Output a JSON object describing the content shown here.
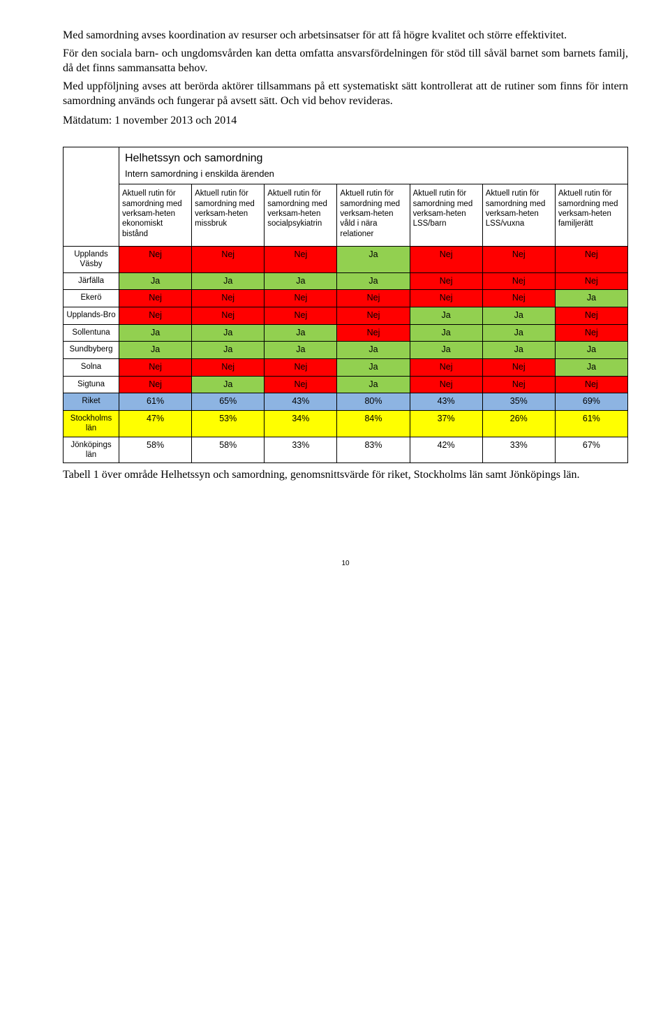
{
  "paragraphs": {
    "p1": "Med samordning avses koordination av resurser och arbetsinsatser för att få högre kvalitet och större effektivitet.",
    "p2": "För den sociala barn- och ungdomsvården kan detta omfatta ansvarsfördelningen för stöd till såväl barnet som barnets familj, då det finns sammansatta behov.",
    "p3": "Med uppföljning avses att berörda aktörer tillsammans på ett systematiskt sätt kontrollerat att de rutiner som finns för intern samordning används och fungerar på avsett sätt. Och vid behov revideras.",
    "matdatum": "Mätdatum: 1 november 2013 och 2014"
  },
  "table": {
    "title": "Helhetssyn och samordning",
    "subtitle": "Intern samordning i enskilda ärenden",
    "columns": [
      "Aktuell rutin för samordning med verksam-heten ekonomiskt bistånd",
      "Aktuell rutin för samordning med verksam-heten missbruk",
      "Aktuell rutin för samordning med verksam-heten socialpsykiatrin",
      "Aktuell rutin för samordning med verksam-heten våld i nära relationer",
      "Aktuell rutin för samordning med verksam-heten LSS/barn",
      "Aktuell rutin för samordning med verksam-heten LSS/vuxna",
      "Aktuell rutin för samordning med verksam-heten familjerätt"
    ],
    "colors": {
      "nej": "#ff0000",
      "ja": "#92d050",
      "riket": "#8db4e2",
      "stockholm": "#ffff00",
      "jonkoping": "#ffffff",
      "white": "#ffffff"
    },
    "rows": [
      {
        "label": "Upplands Väsby",
        "cells": [
          {
            "v": "Nej",
            "c": "nej"
          },
          {
            "v": "Nej",
            "c": "nej"
          },
          {
            "v": "Nej",
            "c": "nej"
          },
          {
            "v": "Ja",
            "c": "ja"
          },
          {
            "v": "Nej",
            "c": "nej"
          },
          {
            "v": "Nej",
            "c": "nej"
          },
          {
            "v": "Nej",
            "c": "nej"
          }
        ]
      },
      {
        "label": "Järfälla",
        "cells": [
          {
            "v": "Ja",
            "c": "ja"
          },
          {
            "v": "Ja",
            "c": "ja"
          },
          {
            "v": "Ja",
            "c": "ja"
          },
          {
            "v": "Ja",
            "c": "ja"
          },
          {
            "v": "Nej",
            "c": "nej"
          },
          {
            "v": "Nej",
            "c": "nej"
          },
          {
            "v": "Nej",
            "c": "nej"
          }
        ]
      },
      {
        "label": "Ekerö",
        "cells": [
          {
            "v": "Nej",
            "c": "nej"
          },
          {
            "v": "Nej",
            "c": "nej"
          },
          {
            "v": "Nej",
            "c": "nej"
          },
          {
            "v": "Nej",
            "c": "nej"
          },
          {
            "v": "Nej",
            "c": "nej"
          },
          {
            "v": "Nej",
            "c": "nej"
          },
          {
            "v": "Ja",
            "c": "ja"
          }
        ]
      },
      {
        "label": "Upplands-Bro",
        "cells": [
          {
            "v": "Nej",
            "c": "nej"
          },
          {
            "v": "Nej",
            "c": "nej"
          },
          {
            "v": "Nej",
            "c": "nej"
          },
          {
            "v": "Nej",
            "c": "nej"
          },
          {
            "v": "Ja",
            "c": "ja"
          },
          {
            "v": "Ja",
            "c": "ja"
          },
          {
            "v": "Nej",
            "c": "nej"
          }
        ]
      },
      {
        "label": "Sollentuna",
        "cells": [
          {
            "v": "Ja",
            "c": "ja"
          },
          {
            "v": "Ja",
            "c": "ja"
          },
          {
            "v": "Ja",
            "c": "ja"
          },
          {
            "v": "Nej",
            "c": "nej"
          },
          {
            "v": "Ja",
            "c": "ja"
          },
          {
            "v": "Ja",
            "c": "ja"
          },
          {
            "v": "Nej",
            "c": "nej"
          }
        ]
      },
      {
        "label": "Sundbyberg",
        "cells": [
          {
            "v": "Ja",
            "c": "ja"
          },
          {
            "v": "Ja",
            "c": "ja"
          },
          {
            "v": "Ja",
            "c": "ja"
          },
          {
            "v": "Ja",
            "c": "ja"
          },
          {
            "v": "Ja",
            "c": "ja"
          },
          {
            "v": "Ja",
            "c": "ja"
          },
          {
            "v": "Ja",
            "c": "ja"
          }
        ]
      },
      {
        "label": "Solna",
        "cells": [
          {
            "v": "Nej",
            "c": "nej"
          },
          {
            "v": "Nej",
            "c": "nej"
          },
          {
            "v": "Nej",
            "c": "nej"
          },
          {
            "v": "Ja",
            "c": "ja"
          },
          {
            "v": "Nej",
            "c": "nej"
          },
          {
            "v": "Nej",
            "c": "nej"
          },
          {
            "v": "Ja",
            "c": "ja"
          }
        ]
      },
      {
        "label": "Sigtuna",
        "cells": [
          {
            "v": "Nej",
            "c": "nej"
          },
          {
            "v": "Ja",
            "c": "ja"
          },
          {
            "v": "Nej",
            "c": "nej"
          },
          {
            "v": "Ja",
            "c": "ja"
          },
          {
            "v": "Nej",
            "c": "nej"
          },
          {
            "v": "Nej",
            "c": "nej"
          },
          {
            "v": "Nej",
            "c": "nej"
          }
        ]
      },
      {
        "label": "Riket",
        "rowcolor": "riket",
        "cells": [
          {
            "v": "61%"
          },
          {
            "v": "65%"
          },
          {
            "v": "43%"
          },
          {
            "v": "80%"
          },
          {
            "v": "43%"
          },
          {
            "v": "35%"
          },
          {
            "v": "69%"
          }
        ]
      },
      {
        "label": "Stockholms län",
        "rowcolor": "stockholm",
        "cells": [
          {
            "v": "47%"
          },
          {
            "v": "53%"
          },
          {
            "v": "34%"
          },
          {
            "v": "84%"
          },
          {
            "v": "37%"
          },
          {
            "v": "26%"
          },
          {
            "v": "61%"
          }
        ]
      },
      {
        "label": "Jönköpings län",
        "rowcolor": "jonkoping",
        "cells": [
          {
            "v": "58%"
          },
          {
            "v": "58%"
          },
          {
            "v": "33%"
          },
          {
            "v": "83%"
          },
          {
            "v": "42%"
          },
          {
            "v": "33%"
          },
          {
            "v": "67%"
          }
        ]
      }
    ]
  },
  "caption": "Tabell 1 över område Helhetssyn och samordning, genomsnittsvärde för riket, Stockholms län samt Jönköpings län.",
  "page_number": "10"
}
